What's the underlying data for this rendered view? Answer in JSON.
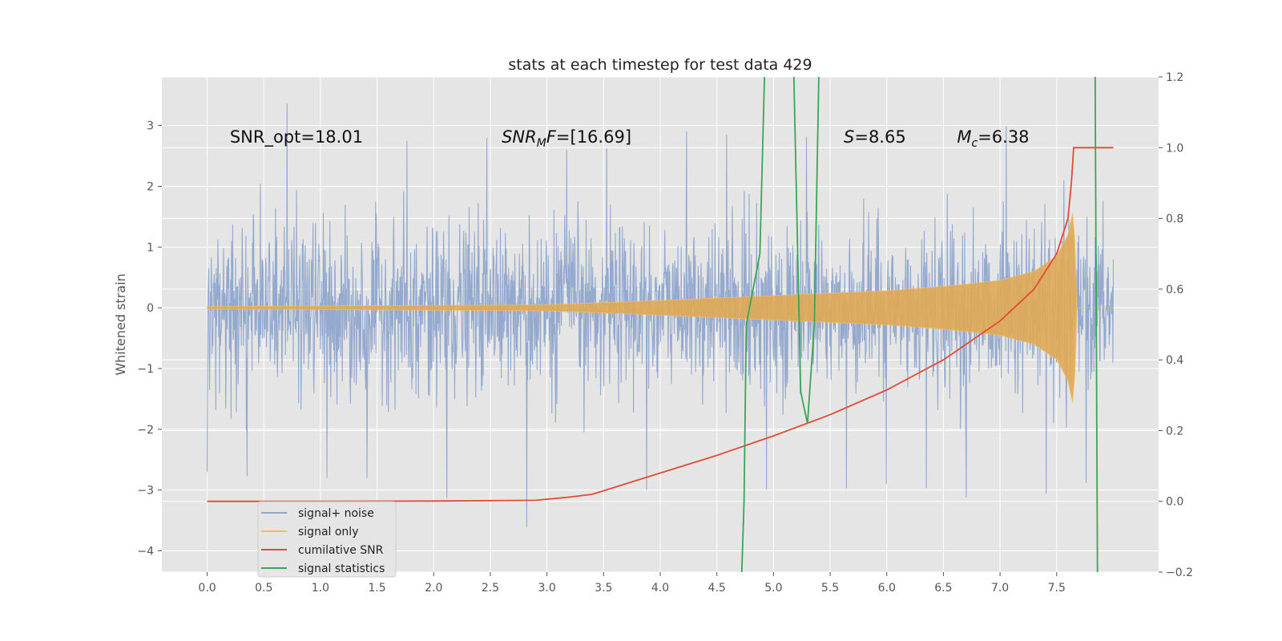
{
  "chart_data": {
    "type": "line",
    "title": "stats at each timestep for test data 429",
    "ylabel": "Whitened strain",
    "xlim": [
      -0.4,
      8.4
    ],
    "ylim": [
      -4.35,
      3.8
    ],
    "y2lim": [
      -0.2,
      1.2
    ],
    "grid": true,
    "xticks": [
      0.0,
      0.5,
      1.0,
      1.5,
      2.0,
      2.5,
      3.0,
      3.5,
      4.0,
      4.5,
      5.0,
      5.5,
      6.0,
      6.5,
      7.0,
      7.5
    ],
    "xtick_labels": [
      "0.0",
      "0.5",
      "1.0",
      "1.5",
      "2.0",
      "2.5",
      "3.0",
      "3.5",
      "4.0",
      "4.5",
      "5.0",
      "5.5",
      "6.0",
      "6.5",
      "7.0",
      "7.5"
    ],
    "yticks": [
      -4,
      -3,
      -2,
      -1,
      0,
      1,
      2,
      3
    ],
    "ytick_labels": [
      "−4",
      "−3",
      "−2",
      "−1",
      "0",
      "1",
      "2",
      "3"
    ],
    "y2ticks": [
      -0.2,
      0.0,
      0.2,
      0.4,
      0.6,
      0.8,
      1.0,
      1.2
    ],
    "y2tick_labels": [
      "−0.2",
      "0.0",
      "0.2",
      "0.4",
      "0.6",
      "0.8",
      "1.0",
      "1.2"
    ],
    "annotations": [
      {
        "prefix": "SNR_opt=18.01",
        "sub": "",
        "suffix": "",
        "italic_prefix": false,
        "x": 0.2,
        "y": 2.72
      },
      {
        "prefix": "SNR",
        "sub": "M",
        "suffix": "F=[16.69]",
        "italic_prefix": true,
        "italic_suffix_first": true,
        "x": 2.6,
        "y": 2.72
      },
      {
        "prefix": "S",
        "sub": "",
        "suffix": "=8.65",
        "italic_prefix": true,
        "x": 5.62,
        "y": 2.72
      },
      {
        "prefix": "M",
        "sub": "c",
        "suffix": "=6.38",
        "italic_prefix": true,
        "x": 6.62,
        "y": 2.72
      }
    ],
    "legend": {
      "position": "lower-left",
      "entries": [
        {
          "label": "signal+ noise",
          "color": "#8fa5cc"
        },
        {
          "label": "signal only",
          "color": "#f4bd5a"
        },
        {
          "label": "cumilative SNR",
          "color": "#e24a33"
        },
        {
          "label": "signal statistics",
          "color": "#3aa655"
        }
      ]
    },
    "series": [
      {
        "name": "signal+ noise",
        "axis": "left",
        "color": "#8fa5cc",
        "x_range": [
          0.0,
          8.0
        ],
        "envelope_x": [
          0.0,
          0.5,
          1.0,
          1.5,
          2.0,
          2.5,
          3.0,
          3.5,
          4.0,
          4.5,
          5.0,
          5.5,
          6.0,
          6.5,
          7.0,
          7.5,
          7.6,
          7.7,
          8.0
        ],
        "envelope_upper": [
          2.9,
          3.4,
          3.3,
          2.8,
          2.7,
          2.8,
          2.6,
          2.6,
          3.0,
          2.8,
          3.1,
          2.6,
          2.9,
          3.2,
          3.0,
          2.9,
          2.8,
          2.8,
          2.9
        ],
        "envelope_lower": [
          -2.7,
          -2.8,
          -2.8,
          -2.8,
          -3.2,
          -2.9,
          -4.0,
          -3.0,
          -3.0,
          -2.9,
          -3.0,
          -3.0,
          -2.9,
          -3.0,
          -3.3,
          -3.0,
          -3.7,
          -3.0,
          -2.4
        ]
      },
      {
        "name": "signal only",
        "axis": "left",
        "color": "#f4bd5a",
        "x": [
          0.0,
          3.0,
          4.0,
          5.0,
          6.0,
          6.5,
          7.0,
          7.3,
          7.5,
          7.6,
          7.65,
          7.68,
          8.0
        ],
        "amplitude": [
          0.02,
          0.05,
          0.12,
          0.2,
          0.28,
          0.35,
          0.45,
          0.6,
          0.85,
          1.2,
          1.65,
          0.0,
          0.0
        ]
      },
      {
        "name": "cumilative SNR",
        "axis": "right",
        "color": "#e24a33",
        "x": [
          0.0,
          1.0,
          2.0,
          2.9,
          3.2,
          3.4,
          3.5,
          3.7,
          4.0,
          4.5,
          5.0,
          5.5,
          6.0,
          6.5,
          7.0,
          7.3,
          7.5,
          7.6,
          7.63,
          7.65,
          8.0
        ],
        "y": [
          0.0,
          0.0,
          0.001,
          0.003,
          0.012,
          0.02,
          0.03,
          0.05,
          0.08,
          0.13,
          0.185,
          0.245,
          0.315,
          0.4,
          0.51,
          0.6,
          0.7,
          0.8,
          0.9,
          1.0,
          1.0
        ]
      },
      {
        "name": "signal statistics",
        "axis": "right",
        "color": "#3aa655",
        "segments": [
          {
            "x": [
              4.72,
              4.74,
              4.76,
              4.88,
              4.92
            ],
            "y": [
              -0.2,
              0.0,
              0.5,
              0.7,
              1.2
            ]
          },
          {
            "x": [
              5.18,
              5.24,
              5.3,
              5.36,
              5.4
            ],
            "y": [
              1.2,
              0.31,
              0.22,
              0.5,
              1.2
            ]
          },
          {
            "x": [
              7.84,
              7.86
            ],
            "y": [
              1.2,
              -0.2
            ]
          }
        ]
      }
    ]
  }
}
